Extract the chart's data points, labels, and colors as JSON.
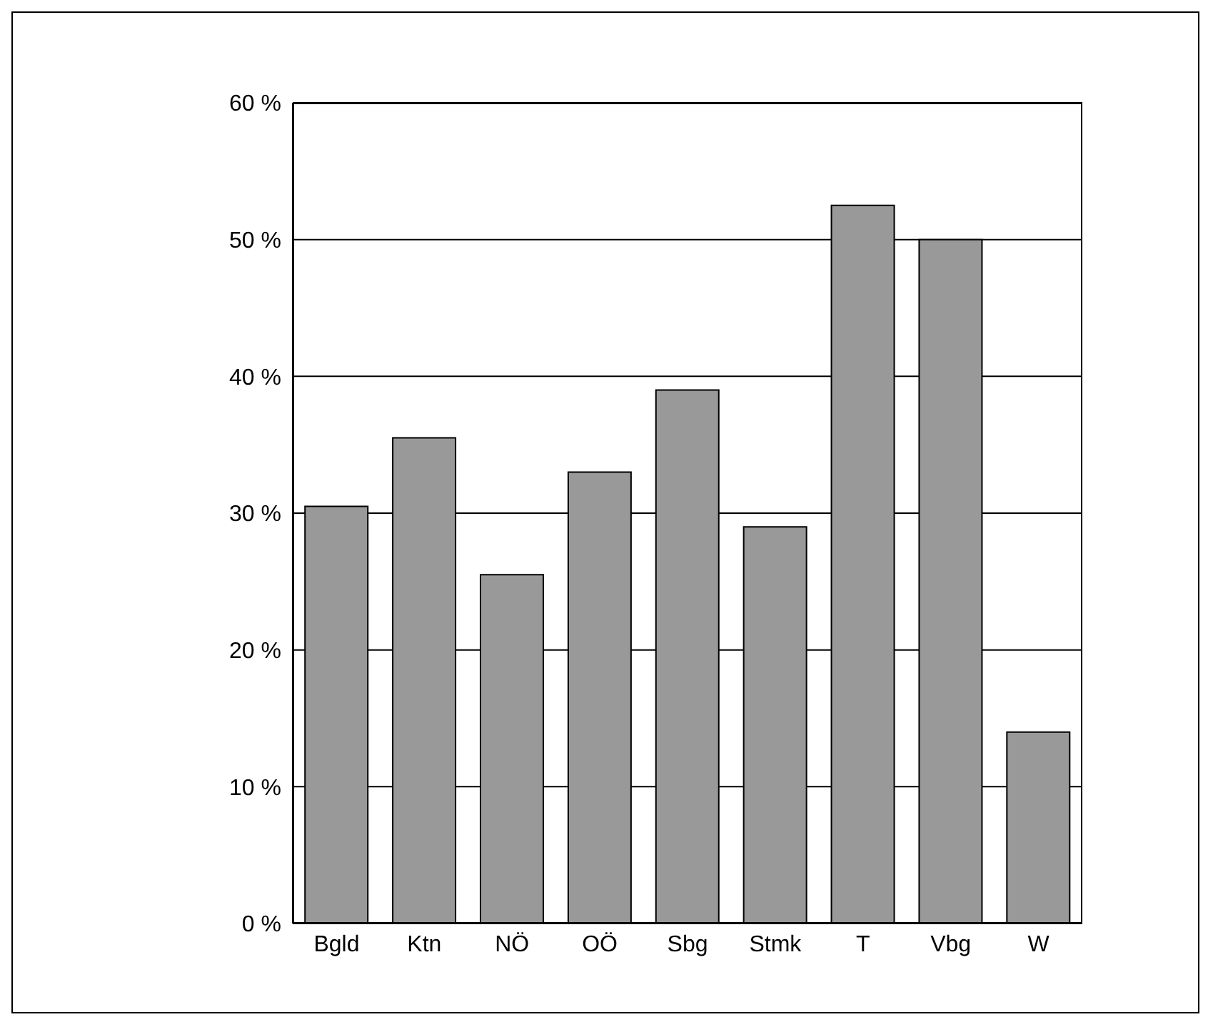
{
  "chart_data": {
    "type": "bar",
    "categories": [
      "Bgld",
      "Ktn",
      "NÖ",
      "OÖ",
      "Sbg",
      "Stmk",
      "T",
      "Vbg",
      "W"
    ],
    "values": [
      30.5,
      35.5,
      25.5,
      33,
      39,
      29,
      52.5,
      50,
      14
    ],
    "color": "#999999",
    "ylim": [
      0,
      60
    ],
    "yticks": [
      {
        "value": 0,
        "label": "0 %"
      },
      {
        "value": 10,
        "label": "10 %"
      },
      {
        "value": 20,
        "label": "20 %"
      },
      {
        "value": 30,
        "label": "30 %"
      },
      {
        "value": 40,
        "label": "40 %"
      },
      {
        "value": 50,
        "label": "50 %"
      },
      {
        "value": 60,
        "label": "60 %"
      }
    ],
    "grid": "y",
    "legend": false
  }
}
